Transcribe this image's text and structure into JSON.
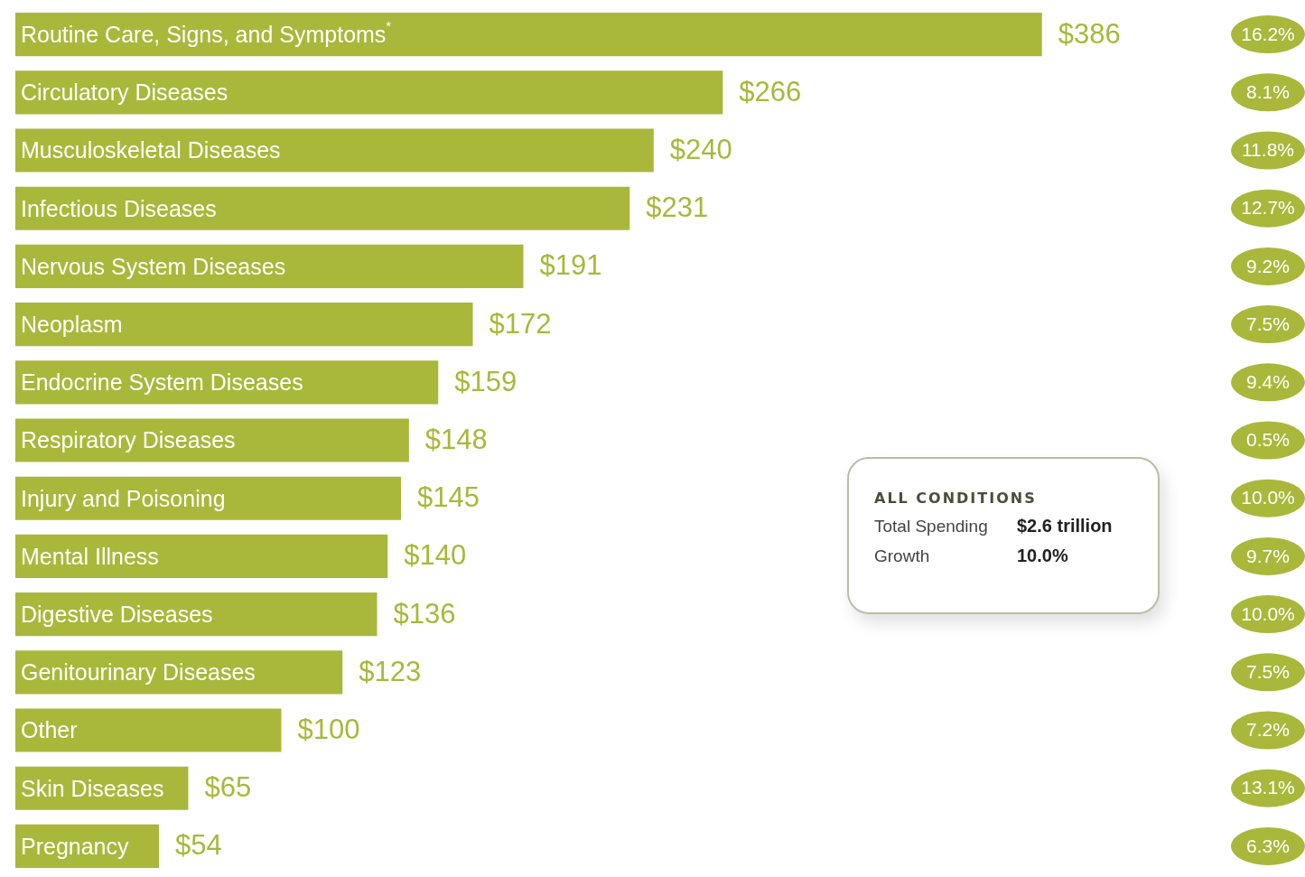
{
  "chart_data": [
    {
      "type": "bar",
      "orientation": "horizontal",
      "color": "#a9b83a",
      "categories": [
        "Routine Care, Signs, and Symptoms$^{*}$",
        "Circulatory Diseases",
        "Musculoskeletal Diseases",
        "Infectious Diseases",
        "Nervous System Diseases",
        "Neoplasm",
        "Endocrine System Diseases",
        "Respiratory Diseases",
        "Injury and Poisoning",
        "Mental Illness",
        "Digestive Diseases",
        "Genitourinary Diseases",
        "Other",
        "Skin Diseases",
        "Pregnancy"
      ],
      "values": [
        386,
        266,
        240,
        231,
        191,
        172,
        159,
        148,
        145,
        140,
        136,
        123,
        100,
        65,
        54
      ],
      "value_labels": [
        "$386",
        "$266",
        "$240",
        "$231",
        "$191",
        "$172",
        "$159",
        "$148",
        "$145",
        "$140",
        "$136",
        "$123",
        "$100",
        "$65",
        "$54"
      ],
      "annotations": [
        "16.2%",
        "8.1%",
        "11.8%",
        "12.7%",
        "9.2%",
        "7.5%",
        "9.4%",
        "0.5%",
        "10.0%",
        "9.7%",
        "10.0%",
        "7.5%",
        "7.2%",
        "13.1%",
        "6.3%"
      ],
      "legend": false
    },
    {
      "type": "other",
      "annotations": [
        "ALL CONDITIONS",
        "Total Spending",
        "$2.6 trillion",
        "Growth",
        "10.0%"
      ]
    }
  ]
}
